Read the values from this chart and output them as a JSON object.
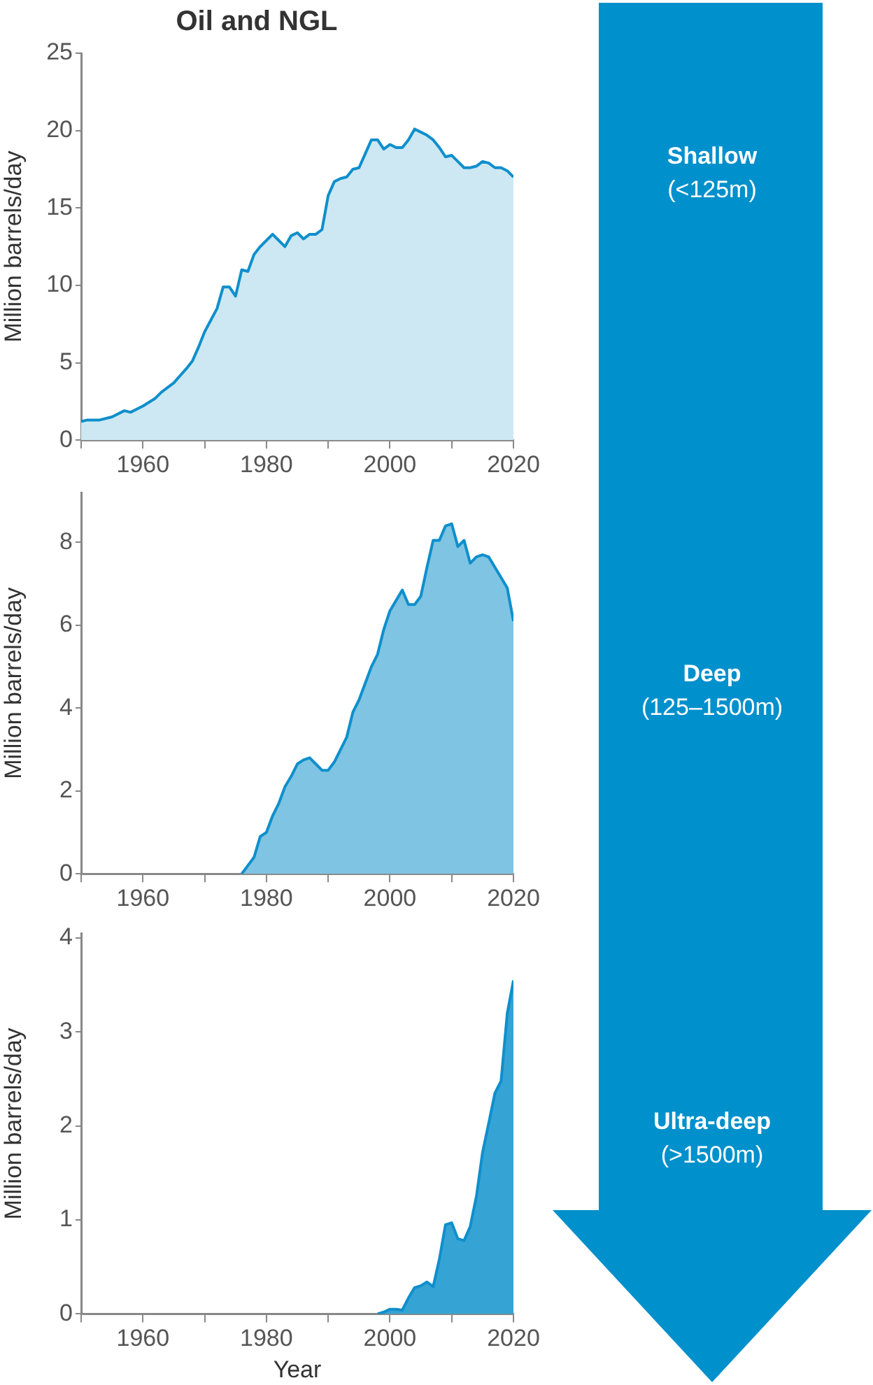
{
  "chart_data": [
    {
      "type": "area",
      "title": "Oil and NGL",
      "ylabel": "Million barrels/day",
      "annotations": [
        "Shallow",
        "(<125m)"
      ],
      "x": [
        1950,
        1951,
        1953,
        1955,
        1957,
        1958,
        1960,
        1962,
        1963,
        1965,
        1967,
        1968,
        1969,
        1970,
        1972,
        1973,
        1974,
        1975,
        1976,
        1977,
        1978,
        1979,
        1980,
        1981,
        1982,
        1983,
        1984,
        1985,
        1986,
        1987,
        1988,
        1989,
        1990,
        1991,
        1992,
        1993,
        1994,
        1995,
        1996,
        1997,
        1998,
        1999,
        2000,
        2001,
        2002,
        2003,
        2004,
        2005,
        2006,
        2007,
        2008,
        2009,
        2010,
        2011,
        2012,
        2013,
        2014,
        2015,
        2016,
        2017,
        2018,
        2019,
        2020
      ],
      "series": [
        {
          "color": "#cde8f3",
          "values": [
            1.2,
            1.3,
            1.3,
            1.5,
            1.9,
            1.8,
            2.2,
            2.7,
            3.1,
            3.7,
            4.6,
            5.1,
            6.0,
            7.0,
            8.5,
            9.9,
            9.9,
            9.3,
            11.0,
            10.9,
            12.0,
            12.5,
            12.9,
            13.3,
            12.9,
            12.5,
            13.2,
            13.4,
            13.0,
            13.3,
            13.3,
            13.6,
            15.8,
            16.7,
            16.9,
            17.0,
            17.5,
            17.6,
            18.5,
            19.4,
            19.4,
            18.8,
            19.1,
            18.9,
            18.9,
            19.4,
            20.1,
            19.9,
            19.7,
            19.4,
            18.9,
            18.3,
            18.4,
            18.0,
            17.6,
            17.6,
            17.7,
            18.0,
            17.9,
            17.6,
            17.6,
            17.4,
            17.0
          ]
        }
      ],
      "xlim": [
        1950,
        2020
      ],
      "xticks": [
        {
          "value": 1950,
          "label": null
        },
        1960,
        {
          "value": 1970,
          "label": null
        },
        1980,
        {
          "value": 1990,
          "label": null
        },
        2000,
        {
          "value": 2010,
          "label": null
        },
        2020
      ],
      "ylim": [
        0,
        25
      ],
      "yticks": [
        0,
        5,
        10,
        15,
        20,
        25
      ],
      "grid": false,
      "legend": false
    },
    {
      "type": "area",
      "ylabel": "Million barrels/day",
      "annotations": [
        "Deep",
        "(125–1500m)"
      ],
      "x": [
        1976,
        1977,
        1978,
        1979,
        1980,
        1981,
        1982,
        1983,
        1984,
        1985,
        1986,
        1987,
        1988,
        1989,
        1990,
        1991,
        1992,
        1993,
        1994,
        1995,
        1996,
        1997,
        1998,
        1999,
        2000,
        2001,
        2002,
        2003,
        2004,
        2005,
        2006,
        2007,
        2008,
        2009,
        2010,
        2011,
        2012,
        2013,
        2014,
        2015,
        2016,
        2017,
        2018,
        2019,
        2020
      ],
      "series": [
        {
          "color": "#7fc4e2",
          "values": [
            0,
            0.2,
            0.4,
            0.9,
            1.0,
            1.4,
            1.7,
            2.1,
            2.35,
            2.65,
            2.75,
            2.8,
            2.65,
            2.5,
            2.5,
            2.7,
            3.0,
            3.3,
            3.9,
            4.2,
            4.6,
            5.0,
            5.3,
            5.9,
            6.35,
            6.6,
            6.85,
            6.5,
            6.5,
            6.7,
            7.4,
            8.05,
            8.05,
            8.4,
            8.45,
            7.9,
            8.05,
            7.5,
            7.65,
            7.7,
            7.65,
            7.4,
            7.15,
            6.9,
            6.1
          ]
        }
      ],
      "xlim": [
        1950,
        2020
      ],
      "xticks": [
        {
          "value": 1950,
          "label": null
        },
        1960,
        {
          "value": 1970,
          "label": null
        },
        1980,
        {
          "value": 1990,
          "label": null
        },
        2000,
        {
          "value": 2010,
          "label": null
        },
        2020
      ],
      "ylim": [
        0,
        9.2
      ],
      "yticks": [
        0,
        2,
        4,
        6,
        8
      ],
      "grid": false,
      "legend": false
    },
    {
      "type": "area",
      "xlabel": "Year",
      "ylabel": "Million barrels/day",
      "annotations": [
        "Ultra-deep",
        "(>1500m)"
      ],
      "x": [
        1998,
        1999,
        2000,
        2001,
        2002,
        2003,
        2004,
        2005,
        2006,
        2007,
        2008,
        2009,
        2010,
        2011,
        2012,
        2013,
        2014,
        2015,
        2016,
        2017,
        2018,
        2019,
        2020
      ],
      "series": [
        {
          "color": "#35a4d5",
          "values": [
            0,
            0.02,
            0.05,
            0.05,
            0.04,
            0.17,
            0.28,
            0.3,
            0.34,
            0.29,
            0.58,
            0.95,
            0.97,
            0.8,
            0.78,
            0.93,
            1.25,
            1.72,
            2.03,
            2.35,
            2.48,
            3.2,
            3.55
          ]
        }
      ],
      "xlim": [
        1950,
        2020
      ],
      "xticks": [
        {
          "value": 1950,
          "label": null
        },
        1960,
        {
          "value": 1970,
          "label": null
        },
        1980,
        {
          "value": 1990,
          "label": null
        },
        2000,
        {
          "value": 2010,
          "label": null
        },
        2020
      ],
      "ylim": [
        0,
        4.05
      ],
      "yticks": [
        0,
        1,
        2,
        3,
        4
      ],
      "grid": false,
      "legend": false
    }
  ]
}
